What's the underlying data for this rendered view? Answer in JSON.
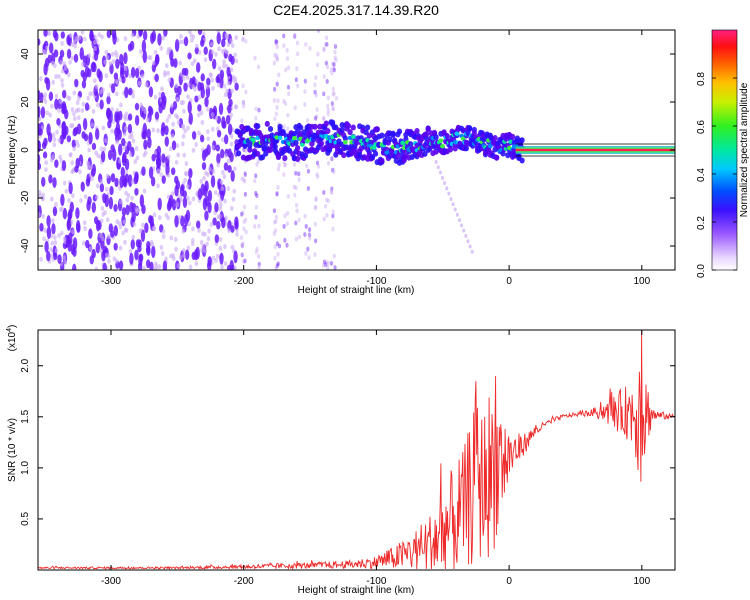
{
  "title": "C2E4.2025.317.14.39.R20",
  "colors": {
    "spectrogram_low": "#c9a9f5",
    "spectrogram_mid": "#6a1bff",
    "snr_line": "#ee2a2a",
    "axis": "#000000"
  },
  "chart_data": [
    {
      "type": "heatmap",
      "title": "C2E4.2025.317.14.39.R20",
      "xlabel": "Height of straight line (km)",
      "ylabel": "Frequency (Hz)",
      "xlim": [
        -355,
        125
      ],
      "ylim": [
        -50,
        50
      ],
      "xticks": [
        -300,
        -200,
        -100,
        0,
        100
      ],
      "yticks": [
        -40,
        -20,
        0,
        20,
        40
      ],
      "xtick_labels": [
        "-300",
        "-200",
        "-100",
        "0",
        "100"
      ],
      "ytick_labels": [
        "-40",
        "-20",
        "0",
        "20",
        "40"
      ],
      "noise_region_x": [
        -355,
        -205
      ],
      "signal_band_center_hz": [
        [
          -205,
          3
        ],
        [
          -180,
          4
        ],
        [
          -160,
          3
        ],
        [
          -140,
          5
        ],
        [
          -120,
          4
        ],
        [
          -100,
          2
        ],
        [
          -90,
          0
        ],
        [
          -80,
          2
        ],
        [
          -70,
          1
        ],
        [
          -60,
          3
        ],
        [
          -50,
          3
        ],
        [
          -40,
          5
        ],
        [
          -30,
          5
        ],
        [
          -20,
          3
        ],
        [
          -10,
          1
        ],
        [
          0,
          2
        ],
        [
          10,
          0
        ],
        [
          125,
          0
        ]
      ],
      "colorbar": {
        "label": "Normalized spectral amplitude",
        "range": [
          0,
          1
        ],
        "ticks": [
          0.0,
          0.2,
          0.4,
          0.6,
          0.8
        ],
        "tick_labels": [
          "0.0",
          "0.2",
          "0.4",
          "0.6",
          "0.8"
        ]
      }
    },
    {
      "type": "line",
      "xlabel": "Height of straight line (km)",
      "ylabel": "SNR (10 * v/v)",
      "yscale_label": "(x10",
      "yscale_exp": "4",
      "yscale_close": ")",
      "xlim": [
        -355,
        125
      ],
      "ylim": [
        0,
        2.35
      ],
      "xticks": [
        -300,
        -200,
        -100,
        0,
        100
      ],
      "yticks": [
        0.5,
        1.0,
        1.5,
        2.0
      ],
      "xtick_labels": [
        "-300",
        "-200",
        "-100",
        "0",
        "100"
      ],
      "ytick_labels": [
        "0.5",
        "1.0",
        "1.5",
        "2.0"
      ],
      "series": [
        {
          "name": "SNR",
          "x": [
            -355,
            -300,
            -250,
            -200,
            -150,
            -120,
            -100,
            -90,
            -80,
            -70,
            -60,
            -55,
            -50,
            -45,
            -40,
            -35,
            -30,
            -25,
            -20,
            -15,
            -10,
            -5,
            0,
            5,
            10,
            15,
            20,
            30,
            40,
            50,
            60,
            70,
            80,
            90,
            95,
            100,
            105,
            110,
            125
          ],
          "baseline": [
            0.02,
            0.02,
            0.02,
            0.03,
            0.04,
            0.05,
            0.07,
            0.1,
            0.13,
            0.17,
            0.22,
            0.26,
            0.31,
            0.38,
            0.45,
            0.55,
            0.65,
            0.72,
            0.78,
            0.85,
            0.92,
            1.0,
            1.08,
            1.15,
            1.2,
            1.28,
            1.36,
            1.44,
            1.5,
            1.52,
            1.53,
            1.54,
            1.53,
            1.52,
            1.5,
            1.5,
            1.51,
            1.51,
            1.5
          ],
          "spike_amplitude": [
            0.01,
            0.01,
            0.01,
            0.02,
            0.03,
            0.04,
            0.06,
            0.1,
            0.15,
            0.22,
            0.3,
            0.4,
            0.55,
            0.5,
            0.6,
            0.55,
            0.7,
            0.9,
            0.7,
            0.85,
            0.75,
            0.55,
            0.3,
            0.18,
            0.12,
            0.08,
            0.05,
            0.03,
            0.02,
            0.02,
            0.03,
            0.08,
            0.18,
            0.28,
            0.45,
            0.85,
            0.25,
            0.05,
            0.02
          ],
          "peak_values": {
            "max": 2.35,
            "max_x": 100,
            "notable": [
              [
                -25,
                1.85
              ],
              [
                -10,
                1.9
              ],
              [
                100,
                2.35
              ]
            ]
          }
        }
      ]
    }
  ]
}
